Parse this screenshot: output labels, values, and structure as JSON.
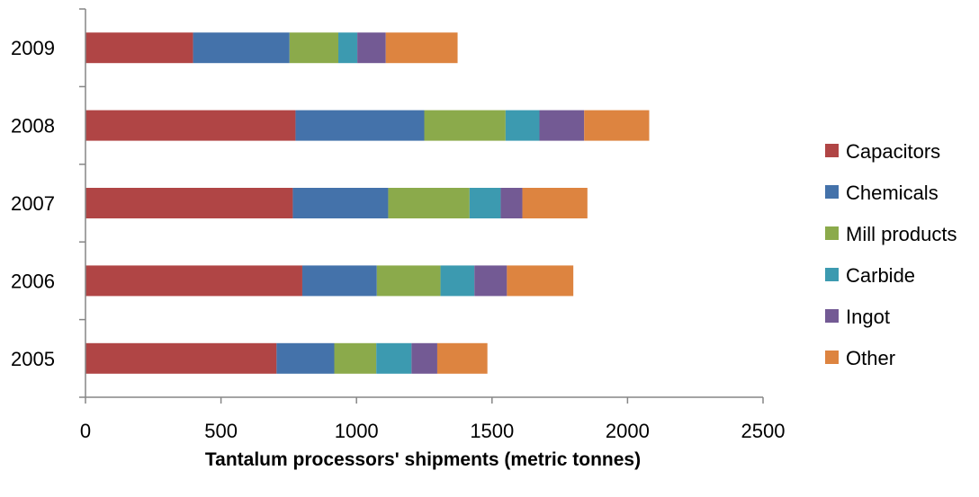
{
  "chart_data": {
    "type": "bar",
    "orientation": "horizontal",
    "stacked": true,
    "categories": [
      "2005",
      "2006",
      "2007",
      "2008",
      "2009"
    ],
    "series": [
      {
        "name": "Capacitors",
        "color": "#B04545",
        "values": [
          705,
          800,
          765,
          775,
          397
        ]
      },
      {
        "name": "Chemicals",
        "color": "#4472AA",
        "values": [
          213,
          275,
          352,
          475,
          356
        ]
      },
      {
        "name": "Mill products",
        "color": "#8BAA4B",
        "values": [
          155,
          235,
          300,
          300,
          180
        ]
      },
      {
        "name": "Carbide",
        "color": "#3C9AB0",
        "values": [
          130,
          125,
          115,
          125,
          70
        ]
      },
      {
        "name": "Ingot",
        "color": "#735A94",
        "values": [
          95,
          120,
          80,
          165,
          105
        ]
      },
      {
        "name": "Other",
        "color": "#DD8440",
        "values": [
          185,
          245,
          240,
          240,
          265
        ]
      }
    ],
    "xlim": [
      0,
      2500
    ],
    "xticks": [
      "0",
      "500",
      "1000",
      "1500",
      "2000",
      "2500"
    ],
    "xlabel": "Tantalum processors' shipments (metric tonnes)",
    "ylabel": "",
    "title": "",
    "grid": false,
    "legend": "right"
  }
}
